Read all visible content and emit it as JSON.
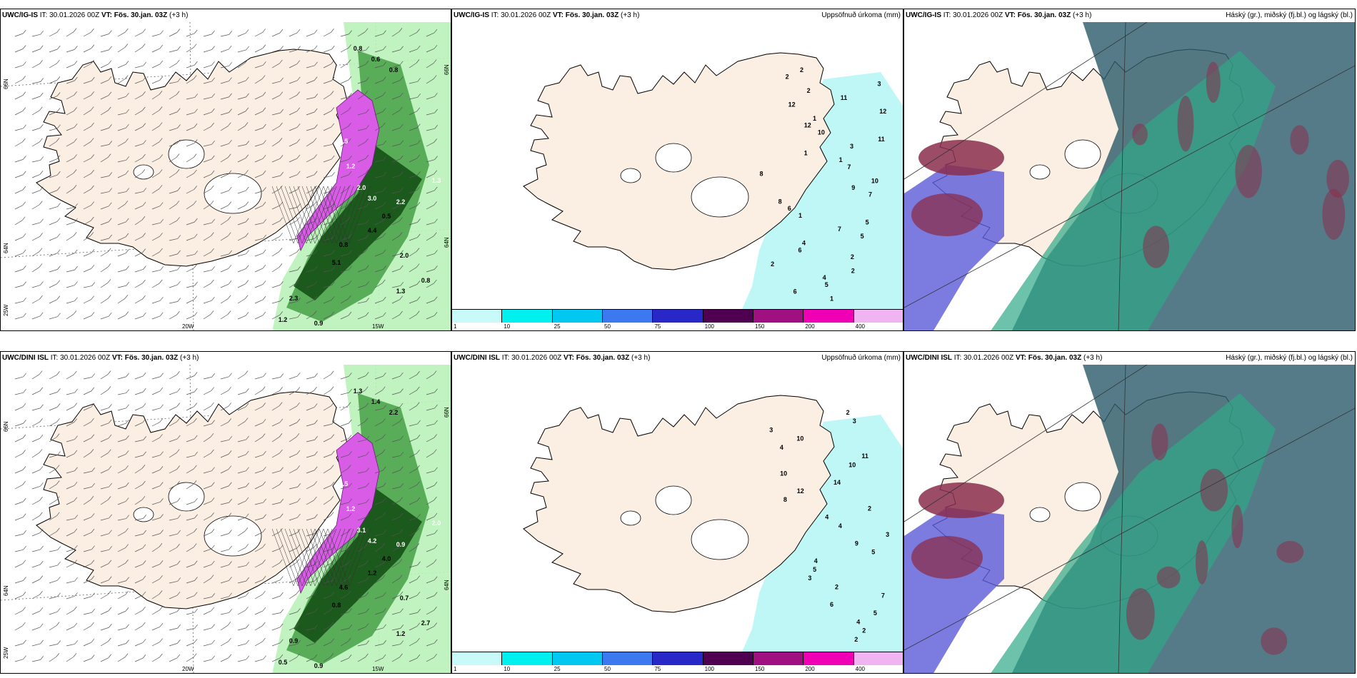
{
  "rows": [
    {
      "model": "UWC/IG-IS",
      "it": "IT: 30.01.2026 00Z",
      "vt_label": "VT:",
      "vt_value": "Fös. 30.jan. 03Z",
      "lead": "(+3 h)",
      "precip_title": "Uppsöfnuð úrkoma (mm)",
      "cloud_title": "Háský (gr.), miðský (fj.bl.) og lágský (bl.)",
      "wind_values": [
        "0.8",
        "0.6",
        "0.8",
        "1.5",
        "1.2",
        "2.0",
        "3.0",
        "2.2",
        "1.3",
        "0.5",
        "4.4",
        "2.0",
        "0.8",
        "5.1",
        "1.3",
        "0.8",
        "2.3",
        "1.2",
        "0.9"
      ],
      "precip_values": [
        "2",
        "2",
        "3",
        "2",
        "11",
        "12",
        "12",
        "1",
        "12",
        "10",
        "11",
        "3",
        "1",
        "1",
        "7",
        "8",
        "10",
        "9",
        "7",
        "8",
        "6",
        "1",
        "5",
        "7",
        "5",
        "4",
        "6",
        "2",
        "2",
        "2",
        "4",
        "5",
        "6",
        "1"
      ]
    },
    {
      "model": "UWC/DINI ISL",
      "it": "IT: 30.01.2026 00Z",
      "vt_label": "VT:",
      "vt_value": "Fös. 30.jan. 03Z",
      "lead": "(+3 h)",
      "precip_title": "Uppsöfnuð úrkoma (mm)",
      "cloud_title": "Háský (gr.), miðský (fj.bl.) og lágský (bl.)",
      "wind_values": [
        "1.3",
        "1.4",
        "2.2",
        "1.5",
        "1.2",
        "3.1",
        "4.2",
        "0.9",
        "2.0",
        "4.0",
        "1.2",
        "0.7",
        "4.6",
        "0.8",
        "1.2",
        "2.7",
        "0.9",
        "0.5",
        "0.9"
      ],
      "precip_values": [
        "2",
        "3",
        "3",
        "10",
        "4",
        "11",
        "10",
        "10",
        "14",
        "12",
        "8",
        "2",
        "4",
        "4",
        "3",
        "9",
        "5",
        "4",
        "5",
        "3",
        "2",
        "7",
        "6",
        "5",
        "4",
        "2",
        "2"
      ]
    }
  ],
  "axis": {
    "lat_top": "66N",
    "lat_bottom": "64N",
    "lon_left": "25W",
    "lon_mid": "20W",
    "lon_right": "15W"
  },
  "colorbar": {
    "labels": [
      "1",
      "10",
      "25",
      "50",
      "75",
      "100",
      "150",
      "200",
      "400"
    ],
    "colors": [
      "#c8fafa",
      "#00f0f0",
      "#00c8f0",
      "#3c78f0",
      "#2828c8",
      "#500050",
      "#a01080",
      "#f000b4",
      "#f0b4f0"
    ]
  },
  "colors": {
    "land": "#fbeee2",
    "precip_area": "#bff7f7",
    "wind_light": "#b9f2b9",
    "wind_mid": "#46a046",
    "wind_dark": "#124a12",
    "wind_strong": "#d85ce6",
    "cloud_dark": "#2a5a6a",
    "cloud_green": "#2fa888",
    "cloud_blue": "#5a5ad8",
    "cloud_red": "#8a2e4c"
  }
}
